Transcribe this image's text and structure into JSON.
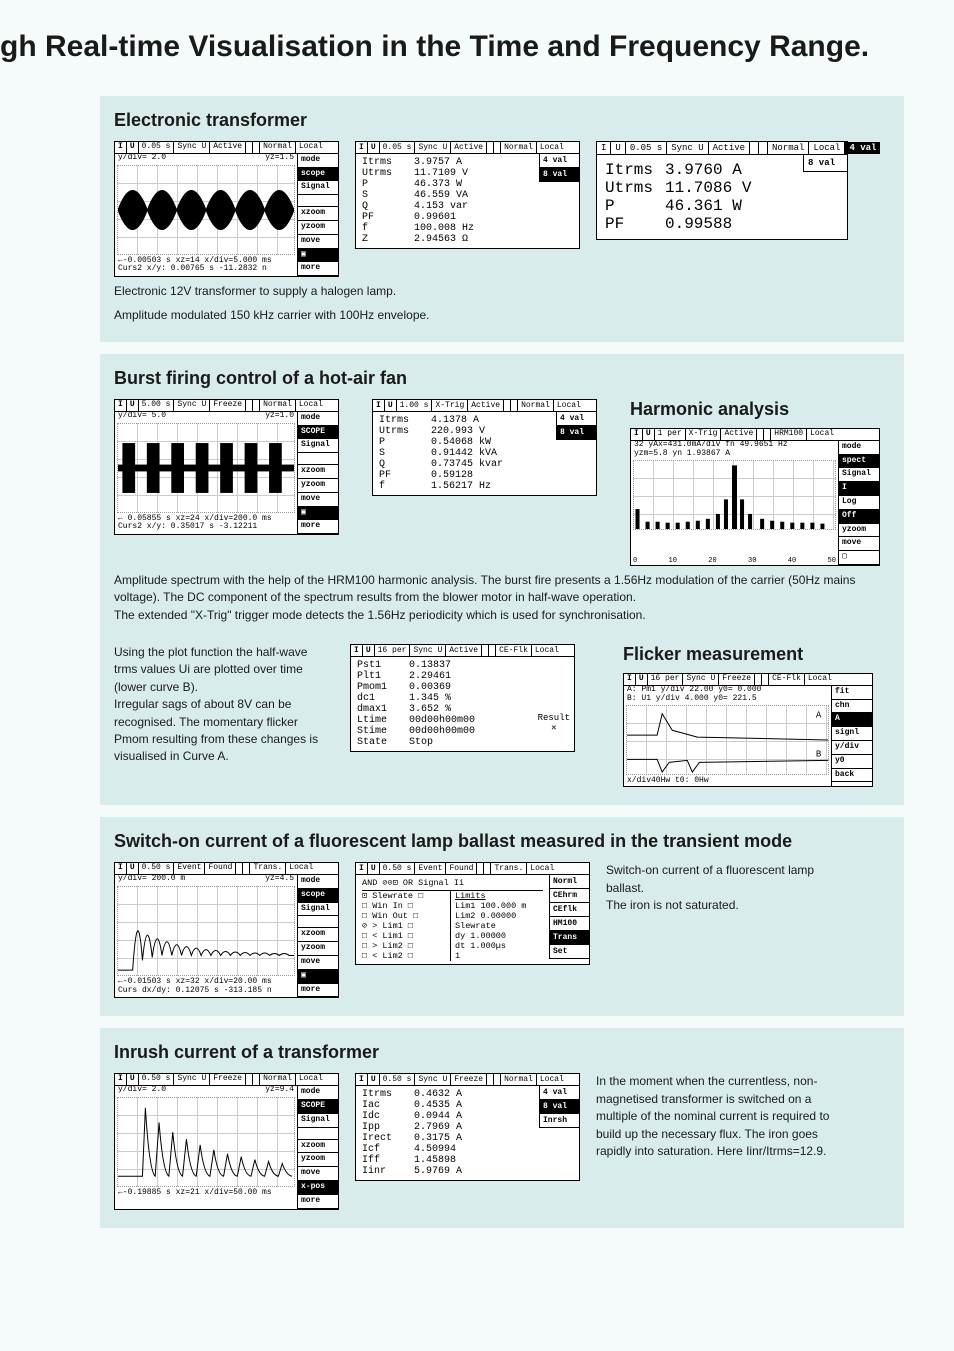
{
  "page_title": "gh Real-time Visualisation in the Time and Frequency Range.",
  "section1": {
    "heading": "Electronic transformer",
    "caption1": "Electronic 12V transformer to supply a halogen lamp.",
    "caption2": "Amplitude modulated 150 kHz carrier with 100Hz envelope.",
    "scope_top": [
      "I",
      "U",
      "0.05 s",
      "Sync U",
      "Active",
      "",
      "",
      "Normal",
      "Local"
    ],
    "scope_side": [
      "mode",
      "scope",
      "Signal",
      "",
      "xzoom",
      "yzoom",
      "move",
      "▣",
      "more"
    ],
    "scope_ytxt": "y/div= 2.0",
    "scope_yz": "yz=1.5",
    "scope_bot1": "←-0.00503 s xz=14   x/div=5.000 ms",
    "scope_bot2": "Curs2 x/y: 0.00765 s -11.2832 n",
    "data_top": [
      "I",
      "U",
      "0.05 s",
      "Sync U",
      "Active",
      "",
      "",
      "Normal",
      "Local"
    ],
    "data_side": [
      "4 val",
      "8 val"
    ],
    "data_rows": [
      [
        "Itrms",
        "3.9757 A"
      ],
      [
        "Utrms",
        "11.7109 V"
      ],
      [
        "P",
        "46.373 W"
      ],
      [
        "S",
        "46.559 VA"
      ],
      [
        "Q",
        "4.153 var"
      ],
      [
        "PF",
        "0.99601"
      ],
      [
        "f",
        "100.008 Hz"
      ],
      [
        "Z",
        "2.94563 Ω"
      ]
    ],
    "big_top": [
      "I",
      "U",
      "0.05 s",
      "Sync U",
      "Active",
      "",
      "",
      "Normal",
      "Local"
    ],
    "big_side": [
      "4 val",
      "8 val"
    ],
    "big_rows": [
      [
        "Itrms",
        "3.9760 A"
      ],
      [
        "Utrms",
        "11.7086 V"
      ],
      [
        "P",
        "46.361 W"
      ],
      [
        "PF",
        "0.99588"
      ]
    ]
  },
  "section2": {
    "heading": "Burst firing control of a hot-air fan",
    "sub": "Harmonic analysis",
    "scope_top": [
      "I",
      "U",
      "5.00 s",
      "Sync U",
      "Freeze",
      "",
      "",
      "Normal",
      "Local"
    ],
    "scope_side": [
      "mode",
      "SCOPE",
      "Signal",
      "",
      "xzoom",
      "yzoom",
      "move",
      "▣",
      "more"
    ],
    "scope_ytxt": "y/div= 5.0",
    "scope_yz": "yz=1.0",
    "scope_bot1": "← 0.05855 s xz=24   x/div=200.0 ms",
    "scope_bot2": "Curs2 x/y: 0.35017 s -3.12211",
    "data_top": [
      "I",
      "U",
      "1.00 s",
      "X-Trig",
      "Active",
      "",
      "",
      "Normal",
      "Local"
    ],
    "data_side": [
      "4 val",
      "8 val"
    ],
    "data_rows": [
      [
        "Itrms",
        "4.1378 A"
      ],
      [
        "Utrms",
        "220.993 V"
      ],
      [
        "P",
        "0.54068 kW"
      ],
      [
        "S",
        "0.91442 kVA"
      ],
      [
        "Q",
        "0.73745 kvar"
      ],
      [
        "PF",
        "0.59128"
      ],
      [
        "f",
        "1.56217 Hz"
      ]
    ],
    "spec_top": [
      "I",
      "U",
      "1 per",
      "X-Trig",
      "Active",
      "",
      "",
      "HRM100",
      "Local"
    ],
    "spec_side": [
      "mode",
      "spect",
      "Signal",
      "I",
      "Log",
      "Off",
      "yzoom",
      "move",
      "▢"
    ],
    "spec_txt1": "32 yAx=431.0mA/div fn  49.9651 Hz",
    "spec_txt2": "   yzm=5.8          yn  1.93867 A",
    "spec_axis": [
      "0",
      "10",
      "20",
      "30",
      "40",
      "50"
    ],
    "caption": "Amplitude spectrum with the help of the HRM100 harmonic analysis. The burst fire presents a 1.56Hz modulation of the carrier (50Hz mains voltage). The DC component of the spectrum results from the blower motor in half-wave operation.\nThe extended \"X-Trig\" trigger mode detects the 1.56Hz periodicity which is used for synchronisation."
  },
  "section2b": {
    "sub": "Flicker measurement",
    "left_text": "Using the plot function the half-wave trms values Ui are plotted over time (lower curve B).\nIrregular sags of about 8V can be recognised. The momentary flicker Pmom resulting from these changes is visualised in Curve A.",
    "data_top": [
      "I",
      "U",
      "16 per",
      "Sync U",
      "Active",
      "",
      "",
      "CE-Flk",
      "Local"
    ],
    "data_rows": [
      [
        "Pst1",
        "0.13837"
      ],
      [
        "Plt1",
        "2.29461"
      ],
      [
        "Pmom1",
        "0.00369"
      ],
      [
        "dc1",
        "1.345 %"
      ],
      [
        "dmax1",
        "3.652 %"
      ],
      [
        "Ltime",
        "00d00h00m00"
      ],
      [
        "Stime",
        "00d00h00m00"
      ],
      [
        "State",
        "Stop"
      ]
    ],
    "result_lbl": "Result",
    "plot_top": [
      "I",
      "U",
      "16 per",
      "Sync U",
      "Freeze",
      "",
      "",
      "CE-Flk",
      "Local"
    ],
    "plot_side": [
      "fit",
      "chn",
      "A",
      "signl",
      "y/div",
      "y0",
      "back"
    ],
    "plot_a": "A: Pm1    y/div 22.00   y0= 0.000",
    "plot_b": "B: U1     y/div 4.000   y0= 221.5",
    "plot_bot": "x/div40Hw                t0: 0Hw"
  },
  "section3": {
    "heading": "Switch-on current of a fluorescent lamp ballast measured in the transient mode",
    "right_text": "Switch-on current of a fluorescent lamp ballast.\nThe iron is not saturated.",
    "scope_top": [
      "I",
      "U",
      "0.50 s",
      "Event",
      "Found",
      "",
      "",
      "Trans.",
      "Local"
    ],
    "scope_side": [
      "mode",
      "scope",
      "Signal",
      "",
      "xzoom",
      "yzoom",
      "move",
      "▣",
      "more"
    ],
    "scope_ytxt": "y/div= 200.0 m",
    "scope_yz": "yz=4.5",
    "scope_bot1": "←-0.01503 s xz=32   x/div=20.00 ms",
    "scope_bot2": "Curs dx/dy: 0.12075 s -313.185 n",
    "set_top": [
      "I",
      "U",
      "0.50 s",
      "Event",
      "Found",
      "",
      "",
      "Trans.",
      "Local"
    ],
    "set_side": [
      "Norml",
      "CEhrm",
      "CEflk",
      "HM100",
      "Trans",
      "Set"
    ],
    "set_hdr1": "AND  ⊘⊙⊡  OR     Signal  Ii",
    "limits_hdr": "Limits",
    "set_rows_l": [
      "⊡ Slewrate □",
      "□  Win In  □",
      "□  Win Out □",
      "⊘  > Lim1  □",
      "□  < Lim1  □",
      "□  > Lim2  □",
      "□  < Lim2  □"
    ],
    "set_rows_r": [
      "Lim1  100.000 m",
      "Lim2   0.00000",
      "Slewrate",
      "dy     1.00000",
      "dt     1.000µs",
      "       1"
    ]
  },
  "section4": {
    "heading": "Inrush current of a transformer",
    "right_text": "In the moment when the currentless, non-magnetised transformer is switched on a multiple of the nominal current is required to build up the necessary flux. The iron goes rapidly into saturation. Here Iinr/Itrms=12.9.",
    "scope_top": [
      "I",
      "U",
      "0.50 s",
      "Sync U",
      "Freeze",
      "",
      "",
      "Normal",
      "Local"
    ],
    "scope_side": [
      "mode",
      "SCOPE",
      "Signal",
      "",
      "xzoom",
      "yzoom",
      "move",
      "x-pos",
      "more"
    ],
    "scope_ytxt": "y/div= 2.0",
    "scope_yz": "yz=9.4",
    "scope_bot": "←-0.19885 s xz=21   x/div=50.00 ms",
    "data_top": [
      "I",
      "U",
      "0.50 s",
      "Sync U",
      "Freeze",
      "",
      "",
      "Normal",
      "Local"
    ],
    "data_side": [
      "4 val",
      "8 val",
      "Inrsh"
    ],
    "data_rows": [
      [
        "Itrms",
        "0.4632 A"
      ],
      [
        "Iac",
        "0.4535 A"
      ],
      [
        "Idc",
        "0.0944 A"
      ],
      [
        "Ipp",
        "2.7969 A"
      ],
      [
        "Irect",
        "0.3175 A"
      ],
      [
        "Icf",
        "4.50994"
      ],
      [
        "Iff",
        "1.45898"
      ],
      [
        "Iinr",
        "5.9769 A"
      ]
    ]
  }
}
